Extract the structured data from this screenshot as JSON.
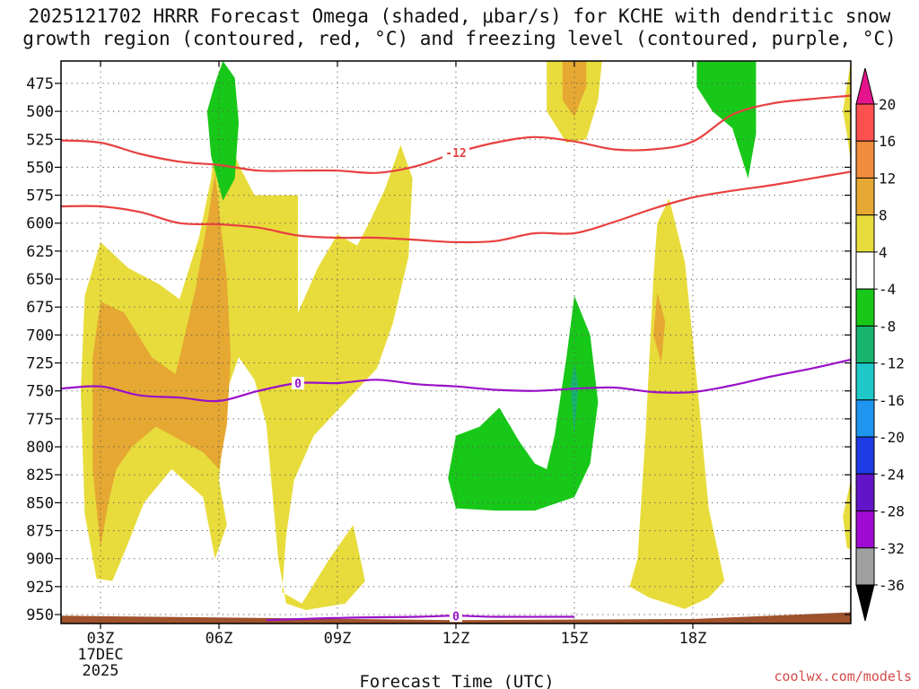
{
  "title_line1": "2025121702 HRRR Forecast Omega (shaded, μbar/s) for KCHE with dendritic snow",
  "title_line2": "growth region (contoured, red, °C) and freezing level (contoured, purple, °C)",
  "credit": "coolwx.com/models",
  "chart_data": {
    "type": "area",
    "xlabel": "Forecast Time (UTC)",
    "ylabel": "",
    "x_range_hours": [
      2,
      22
    ],
    "y_range_mb": [
      455,
      958
    ],
    "y_scale": "inverted",
    "grid": true,
    "x_ticks": [
      {
        "hour": 3,
        "label": "03Z"
      },
      {
        "hour": 6,
        "label": "06Z"
      },
      {
        "hour": 9,
        "label": "09Z"
      },
      {
        "hour": 12,
        "label": "12Z"
      },
      {
        "hour": 15,
        "label": "15Z"
      },
      {
        "hour": 18,
        "label": "18Z"
      }
    ],
    "date_label_lines": [
      "17DEC",
      "2025"
    ],
    "y_ticks": [
      475,
      500,
      525,
      550,
      575,
      600,
      625,
      650,
      675,
      700,
      725,
      750,
      775,
      800,
      825,
      850,
      875,
      900,
      925,
      950
    ],
    "colorbar": {
      "labels": [
        "20",
        "16",
        "12",
        "8",
        "4",
        "-4",
        "-8",
        "-12",
        "-16",
        "-20",
        "-24",
        "-28",
        "-32",
        "-36"
      ],
      "colors": [
        "#ff5050",
        "#f08c3c",
        "#e6a832",
        "#e8dc3c",
        "#ffffff",
        "#18c818",
        "#18b46e",
        "#1ec8c8",
        "#1e96f0",
        "#1e3ce6",
        "#6414c8",
        "#a00ad2",
        "#a0a0a0"
      ],
      "top_arrow_color": "#e6148c",
      "bottom_arrow_color": "#000000"
    },
    "isotherms": [
      {
        "label": "-12",
        "color": "#e84040",
        "label_hour": 12,
        "points": [
          [
            2,
            526
          ],
          [
            3,
            528
          ],
          [
            4,
            538
          ],
          [
            5,
            545
          ],
          [
            6,
            548
          ],
          [
            7,
            553
          ],
          [
            8,
            553
          ],
          [
            9,
            553
          ],
          [
            10,
            555
          ],
          [
            11,
            549
          ],
          [
            12,
            537
          ],
          [
            13,
            528
          ],
          [
            14,
            523
          ],
          [
            15,
            527
          ],
          [
            16,
            534
          ],
          [
            17,
            534
          ],
          [
            18,
            527
          ],
          [
            19,
            503
          ],
          [
            20,
            493
          ],
          [
            21,
            489
          ],
          [
            22,
            486
          ]
        ]
      },
      {
        "label": "",
        "color": "#e84040",
        "points": [
          [
            2,
            585
          ],
          [
            3,
            585
          ],
          [
            4,
            590
          ],
          [
            5,
            600
          ],
          [
            6,
            601
          ],
          [
            7,
            604
          ],
          [
            8,
            611
          ],
          [
            9,
            613
          ],
          [
            10,
            613
          ],
          [
            11,
            615
          ],
          [
            12,
            617
          ],
          [
            13,
            616
          ],
          [
            14,
            609
          ],
          [
            15,
            609
          ],
          [
            16,
            599
          ],
          [
            17,
            587
          ],
          [
            18,
            577
          ],
          [
            19,
            571
          ],
          [
            20,
            566
          ],
          [
            21,
            560
          ],
          [
            22,
            554
          ]
        ]
      },
      {
        "label": "0",
        "color": "#9a10c8",
        "label_hour": 8,
        "points": [
          [
            2,
            748
          ],
          [
            3,
            746
          ],
          [
            4,
            754
          ],
          [
            5,
            756
          ],
          [
            6,
            759
          ],
          [
            7,
            750
          ],
          [
            8,
            743
          ],
          [
            9,
            743
          ],
          [
            10,
            740
          ],
          [
            11,
            744
          ],
          [
            12,
            746
          ],
          [
            13,
            749
          ],
          [
            14,
            750
          ],
          [
            15,
            748
          ],
          [
            16,
            747
          ],
          [
            17,
            751
          ],
          [
            18,
            751
          ],
          [
            19,
            745
          ],
          [
            20,
            737
          ],
          [
            21,
            730
          ],
          [
            22,
            722
          ]
        ]
      },
      {
        "label": "0",
        "color": "#9a10c8",
        "label_hour": 12,
        "points": [
          [
            7.2,
            955
          ],
          [
            9,
            953
          ],
          [
            11,
            952
          ],
          [
            12,
            951
          ],
          [
            13,
            952
          ],
          [
            15,
            952
          ]
        ]
      }
    ],
    "terrain": {
      "color": "#a0522d",
      "points": [
        [
          2,
          951
        ],
        [
          12,
          955
        ],
        [
          18,
          954
        ],
        [
          20,
          951
        ],
        [
          22,
          948
        ]
      ]
    },
    "omega_regions": [
      {
        "level": "4 to 8",
        "color": "#e8dc3c",
        "outline": [
          [
            2.9,
            918
          ],
          [
            2.6,
            860
          ],
          [
            2.5,
            750
          ],
          [
            2.6,
            665
          ],
          [
            3,
            617
          ],
          [
            3.7,
            640
          ],
          [
            4.5,
            655
          ],
          [
            5,
            668
          ],
          [
            5.5,
            612
          ],
          [
            5.8,
            560
          ],
          [
            6,
            500
          ],
          [
            6.5,
            548
          ],
          [
            6.9,
            575
          ],
          [
            8,
            575
          ],
          [
            8,
            680
          ],
          [
            8.5,
            640
          ],
          [
            9,
            610
          ],
          [
            9.5,
            620
          ],
          [
            9.8,
            600
          ],
          [
            10.2,
            570
          ],
          [
            10.6,
            530
          ],
          [
            10.9,
            560
          ],
          [
            10.8,
            630
          ],
          [
            10.4,
            690
          ],
          [
            10,
            730
          ],
          [
            9.2,
            760
          ],
          [
            8.4,
            790
          ],
          [
            7.9,
            830
          ],
          [
            7.7,
            880
          ],
          [
            7.6,
            930
          ],
          [
            8.1,
            940
          ],
          [
            8.8,
            900
          ],
          [
            9.4,
            870
          ],
          [
            9.7,
            920
          ],
          [
            9.2,
            940
          ],
          [
            8.2,
            946
          ],
          [
            7.7,
            940
          ],
          [
            7.5,
            900
          ],
          [
            7.4,
            860
          ],
          [
            7.2,
            780
          ],
          [
            6.9,
            740
          ],
          [
            6.5,
            720
          ],
          [
            6.2,
            750
          ],
          [
            6.0,
            830
          ],
          [
            6.2,
            870
          ],
          [
            5.9,
            900
          ],
          [
            5.6,
            845
          ],
          [
            4.8,
            820
          ],
          [
            4.1,
            850
          ],
          [
            3.6,
            895
          ],
          [
            3.3,
            920
          ]
        ]
      },
      {
        "level": "4 to 8",
        "color": "#e8dc3c",
        "outline": [
          [
            14.3,
            455
          ],
          [
            14.3,
            500
          ],
          [
            14.8,
            528
          ],
          [
            15.3,
            525
          ],
          [
            15.6,
            490
          ],
          [
            15.7,
            455
          ]
        ]
      },
      {
        "level": "4 to 8",
        "color": "#e8dc3c",
        "outline": [
          [
            16.4,
            925
          ],
          [
            16.6,
            900
          ],
          [
            16.8,
            790
          ],
          [
            17,
            650
          ],
          [
            17.1,
            600
          ],
          [
            17.4,
            578
          ],
          [
            17.8,
            635
          ],
          [
            18.1,
            740
          ],
          [
            18.4,
            855
          ],
          [
            18.8,
            920
          ],
          [
            18.4,
            935
          ],
          [
            17.8,
            945
          ],
          [
            16.9,
            935
          ]
        ]
      },
      {
        "level": "4 to 8",
        "color": "#e8dc3c",
        "outline": [
          [
            21.8,
            500
          ],
          [
            21.9,
            520
          ],
          [
            22,
            545
          ],
          [
            22,
            455
          ]
        ]
      },
      {
        "level": "4 to 8",
        "color": "#e8dc3c",
        "outline": [
          [
            21.8,
            862
          ],
          [
            21.9,
            890
          ],
          [
            22,
            892
          ],
          [
            22,
            830
          ]
        ]
      },
      {
        "level": "8 to 12",
        "color": "#e6a832",
        "outline": [
          [
            3.0,
            890
          ],
          [
            2.8,
            820
          ],
          [
            2.8,
            720
          ],
          [
            3.0,
            670
          ],
          [
            3.6,
            680
          ],
          [
            4.3,
            720
          ],
          [
            4.9,
            735
          ],
          [
            5.4,
            660
          ],
          [
            5.7,
            600
          ],
          [
            5.9,
            555
          ],
          [
            6.2,
            650
          ],
          [
            6.3,
            720
          ],
          [
            6.2,
            780
          ],
          [
            6.0,
            820
          ],
          [
            5.6,
            805
          ],
          [
            4.4,
            782
          ],
          [
            3.8,
            800
          ],
          [
            3.4,
            820
          ],
          [
            3.2,
            850
          ]
        ]
      },
      {
        "level": "8 to 12",
        "color": "#e6a832",
        "outline": [
          [
            14.7,
            455
          ],
          [
            14.7,
            490
          ],
          [
            15.0,
            505
          ],
          [
            15.3,
            478
          ],
          [
            15.3,
            455
          ]
        ]
      },
      {
        "level": "8 to 12",
        "color": "#e6a832",
        "outline": [
          [
            17.1,
            662
          ],
          [
            17.3,
            688
          ],
          [
            17.2,
            725
          ],
          [
            17.0,
            700
          ]
        ]
      },
      {
        "level": "-8 to -4",
        "color": "#18c818",
        "outline": [
          [
            5.9,
            475
          ],
          [
            6.1,
            455
          ],
          [
            6.4,
            470
          ],
          [
            6.5,
            510
          ],
          [
            6.4,
            560
          ],
          [
            6.1,
            580
          ],
          [
            5.8,
            540
          ],
          [
            5.7,
            500
          ]
        ]
      },
      {
        "level": "-8 to -4",
        "color": "#18c818",
        "outline": [
          [
            12,
            855
          ],
          [
            11.8,
            828
          ],
          [
            12,
            790
          ],
          [
            12.6,
            782
          ],
          [
            13.1,
            765
          ],
          [
            13.6,
            795
          ],
          [
            14,
            815
          ],
          [
            14.3,
            820
          ],
          [
            14.5,
            790
          ],
          [
            14.8,
            720
          ],
          [
            15,
            665
          ],
          [
            15.4,
            700
          ],
          [
            15.6,
            760
          ],
          [
            15.4,
            815
          ],
          [
            15,
            845
          ],
          [
            14,
            857
          ],
          [
            13,
            857
          ]
        ]
      },
      {
        "level": "-8 to -4",
        "color": "#18c818",
        "outline": [
          [
            18.1,
            455
          ],
          [
            18.1,
            478
          ],
          [
            18.5,
            500
          ],
          [
            19,
            515
          ],
          [
            19.4,
            560
          ],
          [
            19.6,
            520
          ],
          [
            19.6,
            455
          ]
        ]
      },
      {
        "level": "-12 to -8",
        "color": "#18b46e",
        "outline": [
          [
            14.9,
            745
          ],
          [
            15.0,
            725
          ],
          [
            15.1,
            745
          ],
          [
            15.0,
            790
          ]
        ]
      }
    ]
  }
}
